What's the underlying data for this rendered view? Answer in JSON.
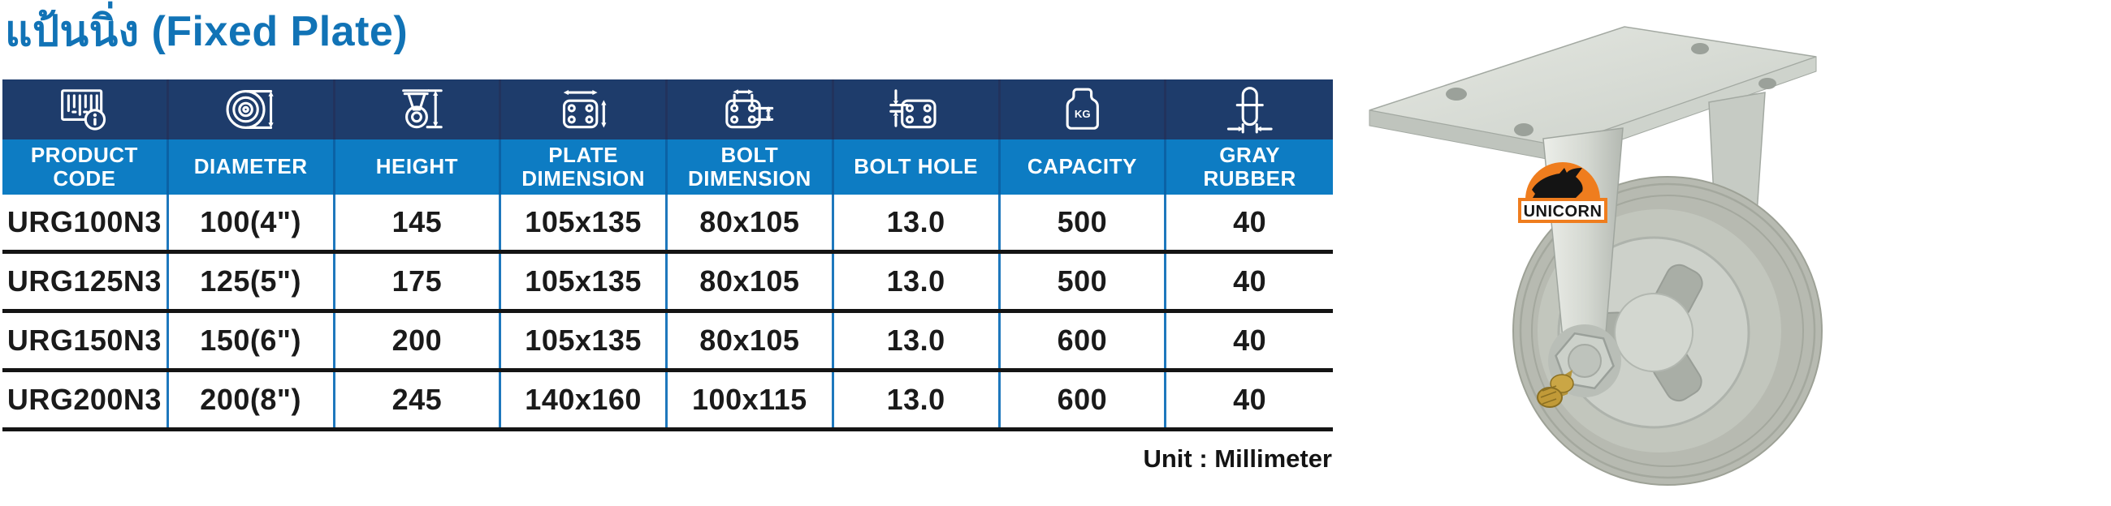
{
  "page": {
    "title": "แป้นนิ่ง (Fixed Plate)",
    "unit_note": "Unit : Millimeter"
  },
  "table": {
    "columns": [
      {
        "label": "PRODUCT\nCODE",
        "icon": "barcode-info-icon"
      },
      {
        "label": "DIAMETER",
        "icon": "wheel-diameter-icon"
      },
      {
        "label": "HEIGHT",
        "icon": "caster-height-icon"
      },
      {
        "label": "PLATE\nDIMENSION",
        "icon": "plate-dimension-icon"
      },
      {
        "label": "BOLT\nDIMENSION",
        "icon": "bolt-dimension-icon"
      },
      {
        "label": "BOLT HOLE",
        "icon": "bolt-hole-icon"
      },
      {
        "label": "CAPACITY",
        "icon": "capacity-kg-icon"
      },
      {
        "label": "GRAY\nRUBBER",
        "icon": "wheel-width-icon"
      }
    ],
    "rows": [
      [
        "URG100N3",
        "100(4\")",
        "145",
        "105x135",
        "80x105",
        "13.0",
        "500",
        "40"
      ],
      [
        "URG125N3",
        "125(5\")",
        "175",
        "105x135",
        "80x105",
        "13.0",
        "500",
        "40"
      ],
      [
        "URG150N3",
        "150(6\")",
        "200",
        "105x135",
        "80x105",
        "13.0",
        "600",
        "40"
      ],
      [
        "URG200N3",
        "200(8\")",
        "245",
        "140x160",
        "100x115",
        "13.0",
        "600",
        "40"
      ]
    ]
  },
  "photo": {
    "brand_label": "UNICORN"
  },
  "colors": {
    "title_blue": "#1173b6",
    "header_navy": "#1e3c6b",
    "header_blue": "#0d7cc3",
    "divider_blue": "#1e78bd",
    "row_separator_black": "#141414",
    "brand_orange": "#ef7d1e",
    "wheel_gray": "#b7bab1"
  }
}
